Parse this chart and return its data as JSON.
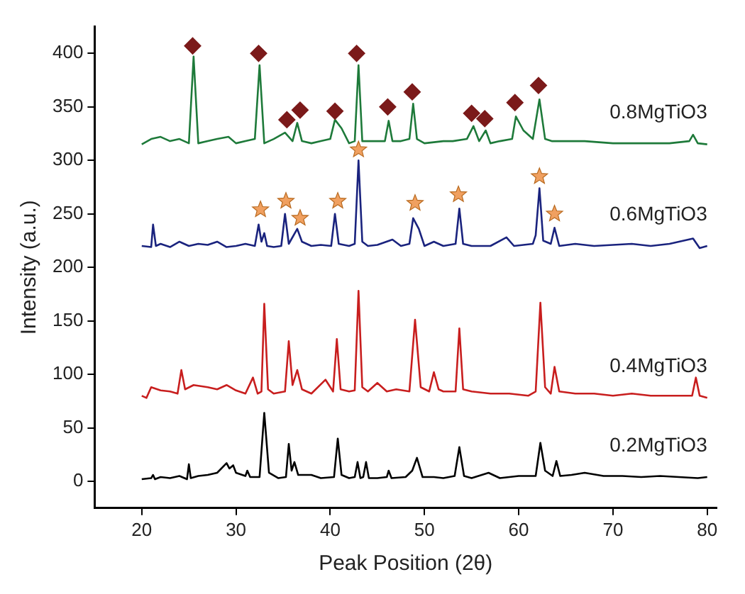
{
  "chart_data": {
    "type": "line",
    "xlabel": "Peak Position (2θ)",
    "ylabel": "Intensity (a.u.)",
    "xlim": [
      15,
      81
    ],
    "ylim": [
      -25,
      425
    ],
    "xticks": [
      20,
      30,
      40,
      50,
      60,
      70,
      80
    ],
    "yticks": [
      0,
      50,
      100,
      150,
      200,
      250,
      300,
      350,
      400
    ],
    "marker": "none",
    "series": [
      {
        "name": "0.2MgTiO3",
        "color": "#000000",
        "x": [
          20,
          21,
          21.2,
          21.4,
          22,
          23,
          24,
          24.8,
          25,
          25.2,
          26,
          27,
          28,
          29,
          29.3,
          29.7,
          30,
          31,
          31.2,
          31.5,
          32.5,
          33,
          33.5,
          34.5,
          35.3,
          35.6,
          35.9,
          36.2,
          36.6,
          38,
          39,
          40.4,
          40.8,
          41.2,
          42,
          42.6,
          42.9,
          43.2,
          43.5,
          43.8,
          44.1,
          45,
          46,
          46.2,
          46.5,
          48,
          48.7,
          49.2,
          49.8,
          51,
          52,
          53.2,
          53.7,
          54.2,
          55,
          56.8,
          58,
          59,
          60,
          61,
          61.8,
          62.3,
          62.8,
          63.6,
          64,
          64.4,
          65.6,
          67,
          69,
          71,
          73,
          75,
          77,
          79,
          80
        ],
        "values": [
          2,
          3,
          6,
          2,
          4,
          3,
          5,
          2,
          16,
          3,
          5,
          6,
          8,
          17,
          12,
          15,
          8,
          5,
          10,
          4,
          4,
          64,
          8,
          3,
          4,
          35,
          10,
          18,
          6,
          6,
          3,
          4,
          40,
          6,
          3,
          4,
          18,
          3,
          4,
          18,
          3,
          3,
          4,
          10,
          3,
          4,
          10,
          22,
          4,
          4,
          3,
          5,
          32,
          5,
          3,
          8,
          3,
          4,
          5,
          5,
          5,
          36,
          10,
          5,
          19,
          5,
          6,
          8,
          5,
          5,
          4,
          5,
          4,
          3,
          4
        ]
      },
      {
        "name": "0.4MgTiO3",
        "color": "#c81e1e",
        "x": [
          20,
          20.5,
          21,
          22,
          23,
          23.8,
          24.2,
          24.6,
          25.5,
          27,
          28,
          29,
          30,
          31,
          31.8,
          32.3,
          32.7,
          33,
          33.4,
          34,
          35.2,
          35.6,
          36,
          36.5,
          37,
          38,
          39.5,
          40.3,
          40.7,
          41.1,
          42,
          42.6,
          43,
          43.4,
          44,
          45,
          46,
          47,
          48.4,
          49,
          49.6,
          50.5,
          51,
          51.5,
          52,
          53.3,
          53.7,
          54.1,
          55,
          57,
          59,
          61,
          61.8,
          62.3,
          62.8,
          63.4,
          63.8,
          64.3,
          66,
          68,
          70,
          72,
          74,
          76,
          78.4,
          78.8,
          79.2,
          80
        ],
        "values": [
          80,
          78,
          88,
          85,
          84,
          82,
          104,
          86,
          90,
          88,
          86,
          90,
          85,
          82,
          97,
          82,
          84,
          166,
          86,
          82,
          84,
          131,
          90,
          104,
          86,
          82,
          95,
          84,
          133,
          86,
          84,
          85,
          178,
          88,
          84,
          92,
          84,
          86,
          84,
          151,
          88,
          84,
          102,
          86,
          84,
          84,
          143,
          86,
          84,
          82,
          82,
          80,
          84,
          167,
          88,
          82,
          107,
          84,
          82,
          82,
          80,
          82,
          80,
          80,
          80,
          97,
          80,
          78
        ]
      },
      {
        "name": "0.6MgTiO3",
        "color": "#1a237e",
        "x": [
          20,
          21,
          21.2,
          21.5,
          22,
          23,
          24,
          25,
          26,
          27,
          28,
          29,
          30,
          31,
          32,
          32.4,
          32.7,
          33,
          33.3,
          34,
          34.8,
          35.2,
          35.6,
          36.5,
          37,
          38,
          39,
          40.1,
          40.5,
          40.9,
          42,
          42.6,
          43,
          43.4,
          44,
          45,
          46.6,
          47.5,
          48.4,
          48.8,
          49.4,
          50,
          51,
          52,
          53.3,
          53.7,
          54.1,
          55,
          57,
          58.7,
          59.5,
          60.5,
          61.5,
          61.8,
          62.2,
          62.6,
          63.4,
          63.8,
          64.3,
          66,
          68,
          70,
          72,
          74,
          76,
          78.5,
          79.2,
          80
        ],
        "values": [
          220,
          219,
          240,
          220,
          222,
          219,
          224,
          220,
          222,
          221,
          224,
          219,
          220,
          222,
          220,
          240,
          224,
          232,
          220,
          219,
          220,
          250,
          222,
          236,
          224,
          220,
          221,
          220,
          250,
          222,
          220,
          222,
          300,
          224,
          220,
          221,
          226,
          220,
          222,
          246,
          236,
          220,
          224,
          220,
          222,
          255,
          222,
          220,
          220,
          228,
          220,
          221,
          222,
          230,
          274,
          225,
          222,
          237,
          220,
          222,
          220,
          221,
          222,
          220,
          222,
          227,
          218,
          220
        ]
      },
      {
        "name": "0.8MgTiO3",
        "color": "#1e7a3a",
        "x": [
          20,
          21,
          22,
          23,
          24,
          25,
          25.5,
          26,
          27,
          28,
          29.2,
          30,
          31,
          32,
          32.5,
          33,
          34,
          35.2,
          36,
          36.5,
          37,
          38,
          39,
          40,
          40.5,
          41.2,
          42,
          42.6,
          43,
          43.4,
          44,
          45,
          45.8,
          46.2,
          46.6,
          47.5,
          48.4,
          48.8,
          49.2,
          50,
          52,
          53,
          54.5,
          55.2,
          55.8,
          56.5,
          57,
          58,
          59.3,
          59.7,
          60.5,
          61.5,
          62.2,
          62.8,
          63.5,
          65,
          67,
          70,
          73,
          76,
          78.1,
          78.5,
          79,
          80
        ],
        "values": [
          315,
          320,
          322,
          318,
          320,
          316,
          397,
          316,
          318,
          320,
          322,
          316,
          318,
          320,
          389,
          316,
          320,
          326,
          318,
          335,
          318,
          316,
          318,
          320,
          338,
          330,
          316,
          318,
          389,
          318,
          318,
          318,
          318,
          337,
          318,
          318,
          320,
          353,
          320,
          316,
          318,
          318,
          320,
          332,
          318,
          328,
          316,
          318,
          320,
          341,
          328,
          320,
          357,
          320,
          318,
          318,
          318,
          316,
          316,
          316,
          318,
          324,
          316,
          315
        ]
      },
      {
        "type": "scatter",
        "marker": "diamond",
        "color": "#7b1a1a",
        "x": [
          25.4,
          32.4,
          35.4,
          36.8,
          40.5,
          42.8,
          46.1,
          48.7,
          55.0,
          56.4,
          59.6,
          62.1
        ],
        "values": [
          407,
          400,
          338,
          347,
          346,
          400,
          350,
          364,
          344,
          339,
          354,
          370
        ]
      },
      {
        "type": "scatter",
        "marker": "star",
        "color": "#f0a060",
        "x": [
          32.6,
          35.3,
          36.8,
          40.8,
          43.0,
          49.0,
          53.6,
          62.2,
          63.8
        ],
        "values": [
          254,
          262,
          246,
          262,
          310,
          260,
          268,
          285,
          250
        ]
      }
    ]
  }
}
